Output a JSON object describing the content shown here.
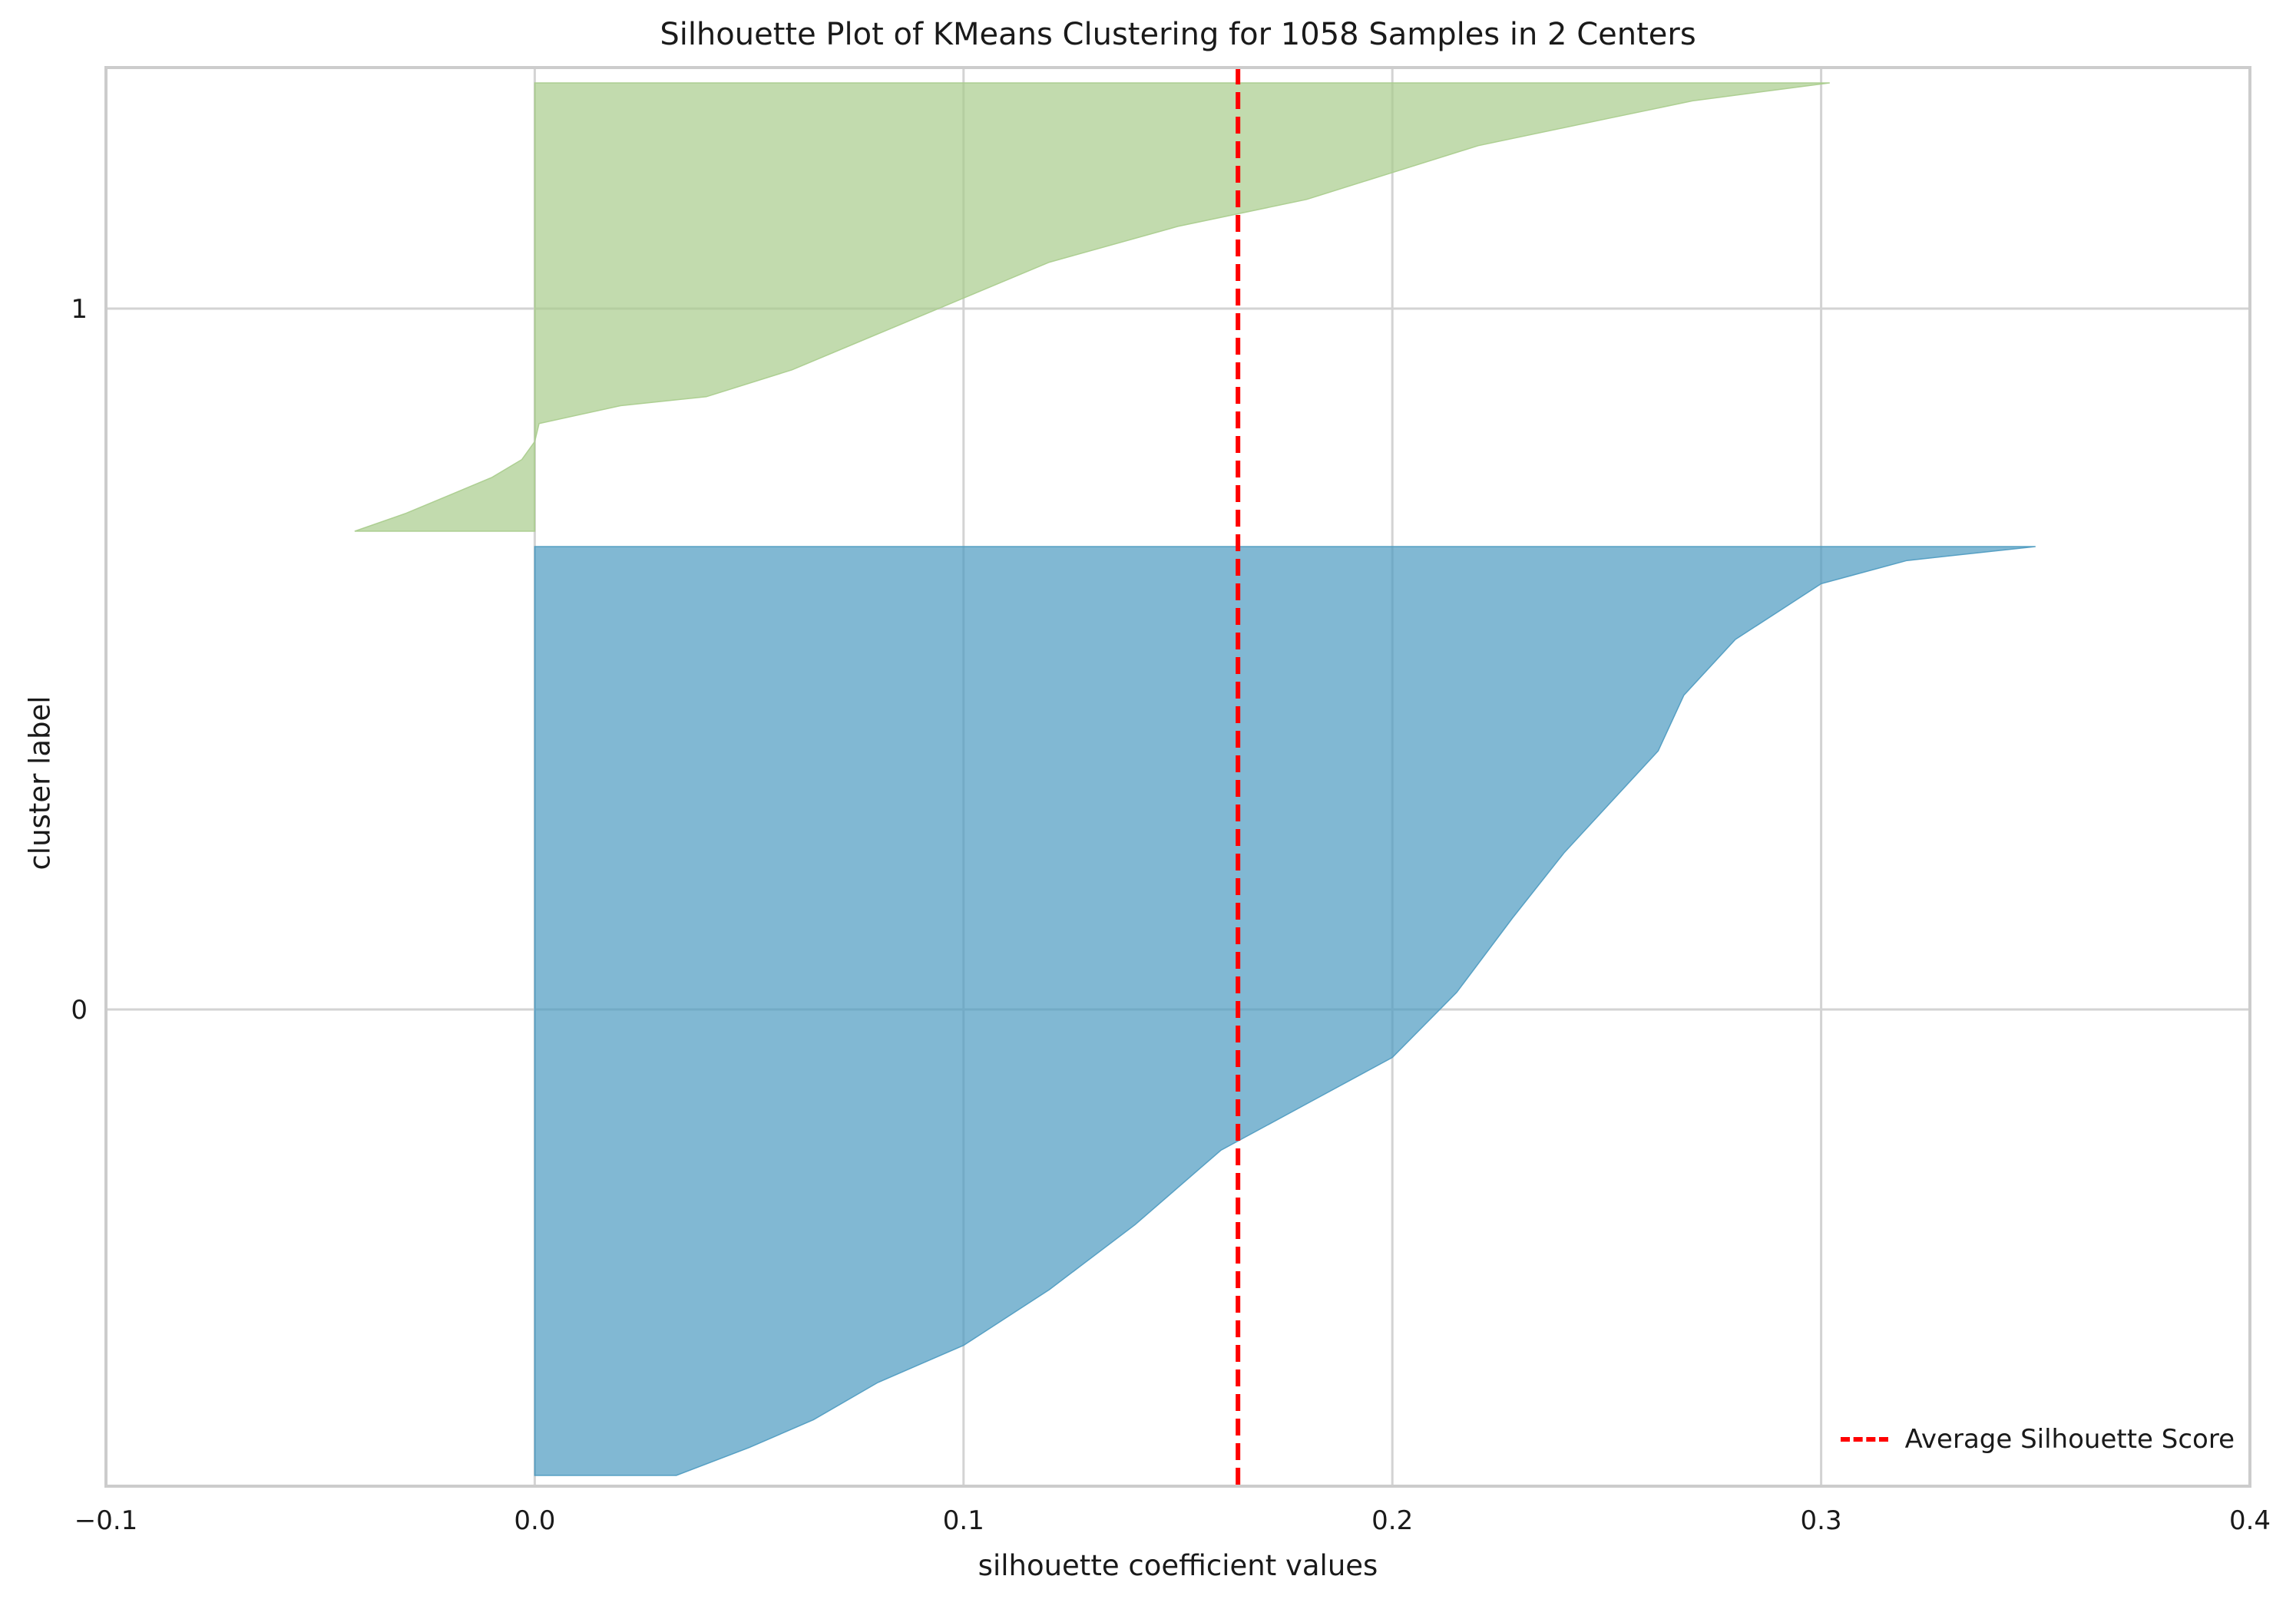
{
  "chart_data": {
    "type": "area",
    "title": "Silhouette Plot of KMeans Clustering for 1058 Samples in 2 Centers",
    "xlabel": "silhouette coefficient values",
    "ylabel": "cluster label",
    "xlim": [
      -0.1,
      0.4
    ],
    "xticks": [
      "−0.1",
      "0.0",
      "0.1",
      "0.2",
      "0.3",
      "0.4"
    ],
    "xtick_values": [
      -0.1,
      0.0,
      0.1,
      0.2,
      0.3,
      0.4
    ],
    "yticks": [
      "0",
      "1"
    ],
    "grid": true,
    "average_silhouette_score": 0.164,
    "legend": {
      "position": "lower-right",
      "entries": [
        "Average Silhouette Score"
      ]
    },
    "series": [
      {
        "name": "0",
        "color": "#4c9ac0",
        "profile_fraction_from_bottom": [
          0,
          0.03,
          0.06,
          0.1,
          0.14,
          0.2,
          0.27,
          0.35,
          0.4,
          0.45,
          0.52,
          0.6,
          0.67,
          0.72,
          0.78,
          0.84,
          0.9,
          0.93,
          0.96,
          0.985,
          1.0
        ],
        "profile_values": [
          0.033,
          0.05,
          0.065,
          0.08,
          0.1,
          0.12,
          0.14,
          0.16,
          0.18,
          0.2,
          0.215,
          0.228,
          0.24,
          0.25,
          0.262,
          0.268,
          0.28,
          0.29,
          0.3,
          0.32,
          0.35
        ]
      },
      {
        "name": "1",
        "color": "#a8cc8c",
        "profile_fraction_from_bottom": [
          0,
          0.04,
          0.08,
          0.12,
          0.16,
          0.2,
          0.24,
          0.28,
          0.3,
          0.36,
          0.44,
          0.52,
          0.6,
          0.68,
          0.74,
          0.8,
          0.86,
          0.92,
          0.96,
          1.0
        ],
        "profile_values": [
          -0.042,
          -0.03,
          -0.02,
          -0.01,
          -0.003,
          0.0,
          0.001,
          0.02,
          0.04,
          0.06,
          0.08,
          0.1,
          0.12,
          0.15,
          0.18,
          0.2,
          0.22,
          0.25,
          0.27,
          0.302
        ]
      }
    ]
  }
}
